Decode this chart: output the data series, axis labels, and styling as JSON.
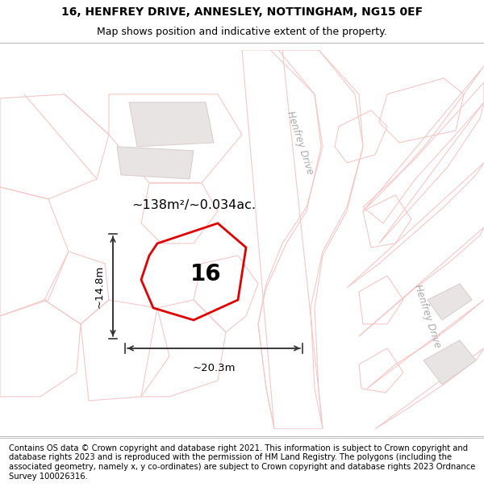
{
  "title_line1": "16, HENFREY DRIVE, ANNESLEY, NOTTINGHAM, NG15 0EF",
  "title_line2": "Map shows position and indicative extent of the property.",
  "footer_text": "Contains OS data © Crown copyright and database right 2021. This information is subject to Crown copyright and database rights 2023 and is reproduced with the permission of HM Land Registry. The polygons (including the associated geometry, namely x, y co-ordinates) are subject to Crown copyright and database rights 2023 Ordnance Survey 100026316.",
  "area_text": "~138m²/~0.034ac.",
  "label_number": "16",
  "dim_width": "~20.3m",
  "dim_height": "~14.8m",
  "road_label_top": "Henfrey Drive",
  "road_label_right": "Henfrey Drive",
  "map_bg": "#f7f4f4",
  "road_line_color": "#f5c8c8",
  "building_fill": "#e8e4e4",
  "building_stroke": "#d8cccc",
  "property_stroke": "#dd0000",
  "title_fontsize": 10,
  "subtitle_fontsize": 9,
  "footer_fontsize": 7.2
}
